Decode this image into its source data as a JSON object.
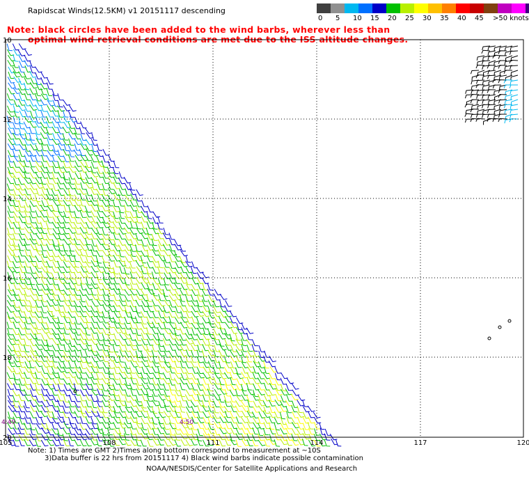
{
  "title": "Rapidscat Winds(12.5KM) v1 20151117 descending",
  "notice_line1": "Note: black circles have been added to the wind barbs, wherever less than",
  "notice_line2": "optimal wind retrieval conditions are met due to the ISS altitude changes.",
  "colorbar": {
    "colors": [
      "#404040",
      "#909090",
      "#00b8f0",
      "#0070ff",
      "#0000c8",
      "#00c000",
      "#b8f000",
      "#ffff00",
      "#ffc000",
      "#ff8000",
      "#ff0000",
      "#c80000",
      "#804010",
      "#c000c0",
      "#ff00ff",
      "#400080"
    ],
    "labels": [
      "0",
      "5",
      "10",
      "15",
      "20",
      "25",
      "30",
      "35",
      "40",
      "45",
      ">50 knots"
    ]
  },
  "map": {
    "lat_labels": [
      "10",
      "12",
      "14",
      "16",
      "18",
      "20"
    ],
    "lon_labels": [
      "105",
      "108",
      "111",
      "114",
      "117",
      "120"
    ],
    "time_labels": [
      "4:49",
      "4:50"
    ]
  },
  "footer": {
    "line1": "Note: 1) Times are GMT 2)Times along bottom correspond to measurement at ~10S",
    "line2": "3)Data buffer is 22 hrs from 20151117 4) Black wind barbs indicate possible contamination",
    "line3": "NOAA/NESDIS/Center for Satellite Applications and Research"
  }
}
